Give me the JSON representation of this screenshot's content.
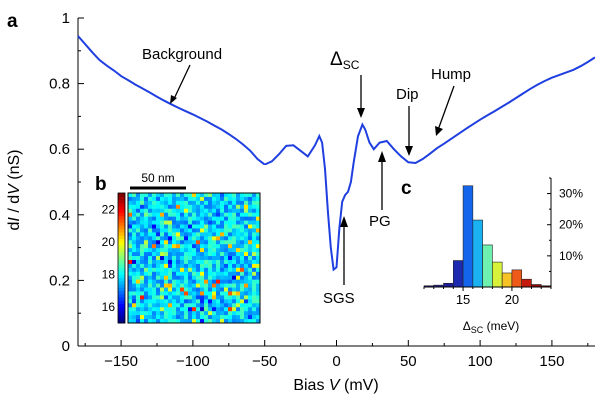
{
  "panels": {
    "a": "a",
    "b": "b",
    "c": "c"
  },
  "chart_data": [
    {
      "type": "line",
      "panel": "a",
      "xlabel_prefix": "Bias ",
      "xlabel_var": "V",
      "xlabel_unit": " (mV)",
      "ylabel_part1": "d",
      "ylabel_var1": "I",
      "ylabel_part2": " / d",
      "ylabel_var2": "V",
      "ylabel_unit": " (nS)",
      "xlim": [
        -180,
        180
      ],
      "ylim": [
        0,
        1
      ],
      "xticks": [
        -150,
        -100,
        -50,
        0,
        50,
        100,
        150
      ],
      "xtick_labels": [
        "−150",
        "−100",
        "−50",
        "0",
        "50",
        "100",
        "150"
      ],
      "yticks": [
        0,
        0.2,
        0.4,
        0.6,
        0.8,
        1
      ],
      "ytick_labels": [
        "0",
        "0.2",
        "0.4",
        "0.6",
        "0.8",
        "1"
      ],
      "color": "#1f3fe0",
      "x": [
        -180,
        -175,
        -170,
        -165,
        -160,
        -155,
        -150,
        -145,
        -140,
        -135,
        -130,
        -125,
        -120,
        -115,
        -110,
        -105,
        -100,
        -95,
        -90,
        -85,
        -80,
        -75,
        -70,
        -65,
        -60,
        -55,
        -50,
        -45,
        -40,
        -35,
        -30,
        -25,
        -20,
        -15,
        -12,
        -10,
        -8,
        -6,
        -4,
        -2,
        0,
        2,
        4,
        6,
        8,
        10,
        12,
        15,
        18,
        20,
        23,
        26,
        30,
        35,
        40,
        45,
        50,
        55,
        60,
        65,
        70,
        75,
        80,
        85,
        90,
        95,
        100,
        105,
        110,
        115,
        120,
        125,
        130,
        135,
        140,
        145,
        150,
        155,
        160,
        165,
        170,
        175,
        180
      ],
      "y": [
        0.945,
        0.92,
        0.895,
        0.872,
        0.855,
        0.84,
        0.823,
        0.81,
        0.797,
        0.785,
        0.773,
        0.76,
        0.748,
        0.737,
        0.726,
        0.716,
        0.706,
        0.695,
        0.684,
        0.672,
        0.66,
        0.646,
        0.631,
        0.614,
        0.595,
        0.57,
        0.553,
        0.563,
        0.585,
        0.61,
        0.612,
        0.595,
        0.578,
        0.612,
        0.64,
        0.62,
        0.54,
        0.41,
        0.3,
        0.233,
        0.24,
        0.36,
        0.44,
        0.46,
        0.47,
        0.5,
        0.56,
        0.64,
        0.675,
        0.66,
        0.62,
        0.6,
        0.62,
        0.625,
        0.6,
        0.578,
        0.56,
        0.558,
        0.57,
        0.586,
        0.603,
        0.617,
        0.632,
        0.647,
        0.662,
        0.676,
        0.69,
        0.703,
        0.716,
        0.729,
        0.742,
        0.756,
        0.77,
        0.784,
        0.797,
        0.808,
        0.818,
        0.826,
        0.834,
        0.842,
        0.853,
        0.866,
        0.88
      ],
      "annotations": [
        {
          "name": "background",
          "text": "Background"
        },
        {
          "name": "delta-sc",
          "text": "Δ",
          "sub": "SC"
        },
        {
          "name": "hump",
          "text": "Hump"
        },
        {
          "name": "dip",
          "text": "Dip"
        },
        {
          "name": "pg",
          "text": "PG"
        },
        {
          "name": "sgs",
          "text": "SGS"
        }
      ]
    },
    {
      "type": "heatmap",
      "panel": "b",
      "scalebar_label": "50 nm",
      "colorbar_ticks": [
        16,
        18,
        20,
        22
      ],
      "colorbar_range": [
        15,
        23
      ]
    },
    {
      "type": "bar",
      "panel": "c",
      "xlabel": "Δ",
      "xlabel_sub": "SC",
      "xlabel_unit": " (meV)",
      "xticks": [
        15,
        20
      ],
      "yticks_labels": [
        "10%",
        "20%",
        "30%"
      ],
      "yticks_values": [
        10,
        20,
        30
      ],
      "xlim": [
        11,
        24
      ],
      "ylim": [
        0,
        35
      ],
      "bins": [
        {
          "x": 11.5,
          "value": 0.4,
          "color": "#2a1a8c"
        },
        {
          "x": 12.5,
          "value": 0.6,
          "color": "#25208f"
        },
        {
          "x": 13.5,
          "value": 1.2,
          "color": "#1e1e9a"
        },
        {
          "x": 14.5,
          "value": 8.5,
          "color": "#1c2ab0"
        },
        {
          "x": 15.5,
          "value": 32.5,
          "color": "#1366ec"
        },
        {
          "x": 16.5,
          "value": 21.5,
          "color": "#1ab2f0"
        },
        {
          "x": 17.5,
          "value": 13.5,
          "color": "#6ef0ae"
        },
        {
          "x": 18.5,
          "value": 8.0,
          "color": "#d8f23a"
        },
        {
          "x": 19.5,
          "value": 4.5,
          "color": "#f7c225"
        },
        {
          "x": 20.5,
          "value": 5.5,
          "color": "#f05a18"
        },
        {
          "x": 21.5,
          "value": 2.5,
          "color": "#c51a0e"
        },
        {
          "x": 22.5,
          "value": 0.8,
          "color": "#8f0a0a"
        },
        {
          "x": 23.5,
          "value": 0.4,
          "color": "#6a0505"
        }
      ]
    }
  ]
}
